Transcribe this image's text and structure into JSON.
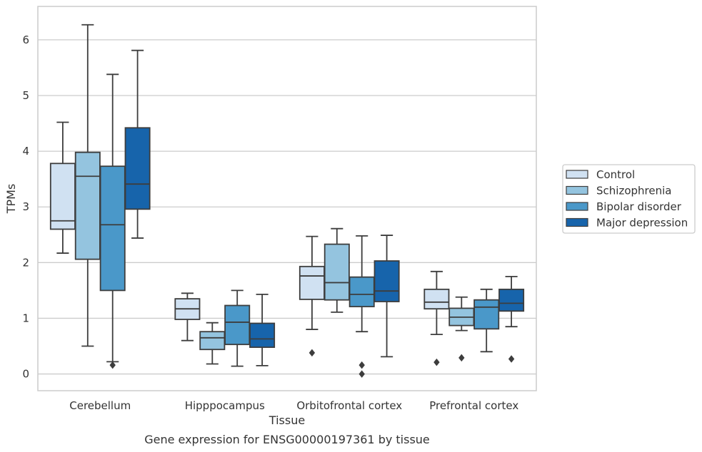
{
  "chart_data": {
    "type": "box",
    "xlabel": "Tissue",
    "ylabel": "TPMs",
    "caption": "Gene expression for ENSG00000197361 by tissue",
    "categories": [
      "Cerebellum",
      "Hipppocampus",
      "Orbitofrontal cortex",
      "Prefrontal cortex"
    ],
    "ylim": [
      -0.3,
      6.6
    ],
    "yticks": [
      0,
      1,
      2,
      3,
      4,
      5,
      6
    ],
    "grid": "horizontal",
    "legend_position": "right",
    "series": [
      {
        "name": "Control",
        "color": "#d0e1f2",
        "boxes": [
          {
            "min": 2.17,
            "q1": 2.6,
            "median": 2.75,
            "q3": 3.78,
            "max": 4.52,
            "outliers": []
          },
          {
            "min": 0.6,
            "q1": 0.98,
            "median": 1.17,
            "q3": 1.35,
            "max": 1.45,
            "outliers": []
          },
          {
            "min": 0.8,
            "q1": 1.34,
            "median": 1.76,
            "q3": 1.93,
            "max": 2.47,
            "outliers": [
              0.38
            ]
          },
          {
            "min": 0.71,
            "q1": 1.17,
            "median": 1.29,
            "q3": 1.52,
            "max": 1.84,
            "outliers": [
              0.21
            ]
          }
        ]
      },
      {
        "name": "Schizophrenia",
        "color": "#94c4df",
        "boxes": [
          {
            "min": 0.5,
            "q1": 2.06,
            "median": 3.55,
            "q3": 3.98,
            "max": 6.27,
            "outliers": []
          },
          {
            "min": 0.18,
            "q1": 0.44,
            "median": 0.65,
            "q3": 0.76,
            "max": 0.92,
            "outliers": []
          },
          {
            "min": 1.11,
            "q1": 1.33,
            "median": 1.64,
            "q3": 2.33,
            "max": 2.61,
            "outliers": []
          },
          {
            "min": 0.78,
            "q1": 0.87,
            "median": 1.02,
            "q3": 1.18,
            "max": 1.38,
            "outliers": [
              0.29
            ]
          }
        ]
      },
      {
        "name": "Bipolar disorder",
        "color": "#4a98c9",
        "boxes": [
          {
            "min": 0.22,
            "q1": 1.5,
            "median": 2.68,
            "q3": 3.73,
            "max": 5.38,
            "outliers": [
              0.16
            ]
          },
          {
            "min": 0.14,
            "q1": 0.53,
            "median": 0.93,
            "q3": 1.23,
            "max": 1.5,
            "outliers": []
          },
          {
            "min": 0.76,
            "q1": 1.21,
            "median": 1.43,
            "q3": 1.74,
            "max": 2.48,
            "outliers": [
              0.16,
              0.0
            ]
          },
          {
            "min": 0.4,
            "q1": 0.81,
            "median": 1.2,
            "q3": 1.33,
            "max": 1.52,
            "outliers": []
          }
        ]
      },
      {
        "name": "Major depression",
        "color": "#1764ab",
        "boxes": [
          {
            "min": 2.44,
            "q1": 2.96,
            "median": 3.41,
            "q3": 4.42,
            "max": 5.81,
            "outliers": []
          },
          {
            "min": 0.15,
            "q1": 0.48,
            "median": 0.63,
            "q3": 0.91,
            "max": 1.43,
            "outliers": []
          },
          {
            "min": 0.31,
            "q1": 1.3,
            "median": 1.49,
            "q3": 2.03,
            "max": 2.49,
            "outliers": []
          },
          {
            "min": 0.85,
            "q1": 1.13,
            "median": 1.27,
            "q3": 1.52,
            "max": 1.75,
            "outliers": [
              0.27
            ]
          }
        ]
      }
    ]
  }
}
